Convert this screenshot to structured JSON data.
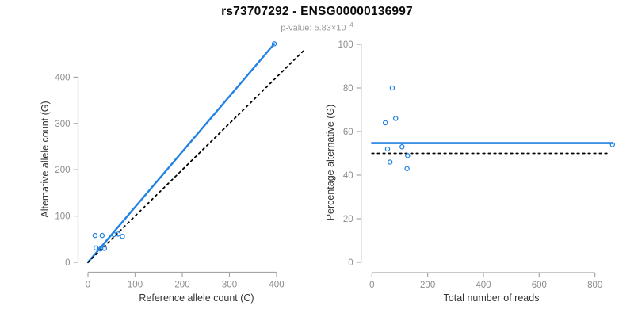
{
  "header": {
    "title": "rs73707292 - ENSG00000136997",
    "pvalue_prefix": "p-value: 5.83×10",
    "pvalue_exponent": "−4"
  },
  "colors": {
    "accent_blue": "#2182E3",
    "axis_line": "#a6a6a6",
    "tick_label": "#8c8c8c",
    "axis_title": "#333333",
    "title_text": "#0a0a0a",
    "subtitle_text": "#9b9b9b"
  },
  "chart_data": [
    {
      "name": "allele-counts-scatter",
      "type": "scatter",
      "xlabel": "Reference allele count (C)",
      "ylabel": "Alternative allele count (G)",
      "xticks": [
        0,
        100,
        200,
        300,
        400
      ],
      "yticks": [
        0,
        100,
        200,
        300,
        400
      ],
      "xlim": [
        0,
        460
      ],
      "ylim": [
        0,
        480
      ],
      "points": [
        [
          15,
          58
        ],
        [
          30,
          58
        ],
        [
          17,
          31
        ],
        [
          27,
          29
        ],
        [
          35,
          30
        ],
        [
          55,
          60
        ],
        [
          64,
          61
        ],
        [
          73,
          56
        ],
        [
          395,
          472
        ]
      ],
      "lines": [
        {
          "name": "regression-line",
          "x1": 0,
          "y1": 0,
          "x2": 395,
          "y2": 472,
          "style": "solid",
          "color": "#2182E3",
          "width": 2.4
        },
        {
          "name": "identity-line",
          "x1": 0,
          "y1": 0,
          "x2": 460,
          "y2": 460,
          "style": "dotted",
          "color": "#000000",
          "width": 1.8
        }
      ],
      "point_color": "#2182E3",
      "grid": false,
      "legend": "none"
    },
    {
      "name": "percentage-vs-reads-scatter",
      "type": "scatter",
      "xlabel": "Total number of reads",
      "ylabel": "Percentage alternative (G)",
      "xticks": [
        0,
        200,
        400,
        600,
        800
      ],
      "yticks": [
        0,
        20,
        40,
        60,
        80,
        100
      ],
      "xlim": [
        0,
        880
      ],
      "ylim": [
        0,
        100
      ],
      "points": [
        [
          73,
          80
        ],
        [
          85,
          66
        ],
        [
          48,
          64
        ],
        [
          56,
          52
        ],
        [
          108,
          53
        ],
        [
          65,
          46
        ],
        [
          128,
          49
        ],
        [
          126,
          43
        ],
        [
          863,
          54
        ]
      ],
      "lines": [
        {
          "name": "mean-percentage-line",
          "x1": 0,
          "y1": 54.7,
          "x2": 863,
          "y2": 54.7,
          "style": "solid",
          "color": "#2182E3",
          "width": 2.6
        },
        {
          "name": "null-50-percent-line",
          "x1": 0,
          "y1": 50,
          "x2": 850,
          "y2": 50,
          "style": "dotted",
          "color": "#000000",
          "width": 1.8
        }
      ],
      "point_color": "#2182E3",
      "grid": false,
      "legend": "none"
    }
  ]
}
